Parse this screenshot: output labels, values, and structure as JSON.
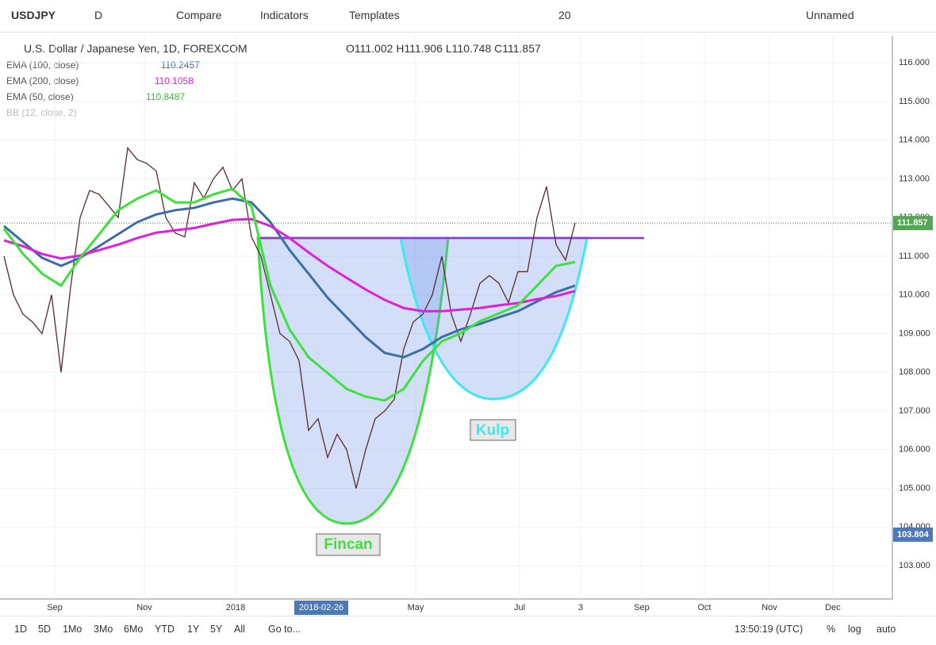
{
  "toolbar": {
    "symbol": "USDJPY",
    "interval": "D",
    "compare": "Compare",
    "indicators": "Indicators",
    "templates": "Templates",
    "font_size": "20",
    "layout_name": "Unnamed"
  },
  "legend": {
    "title": "U.S. Dollar / Japanese Yen, 1D, FOREXCOM",
    "open_label": "O",
    "open": 111.002,
    "high_label": "H",
    "high": 111.906,
    "low_label": "L",
    "low": 110.748,
    "close_label": "C",
    "close": 111.857,
    "bb": "BB (12, close, 2)"
  },
  "chart_data": {
    "type": "line",
    "values": [
      111.0,
      110.0,
      109.5,
      109.3,
      109.0,
      110.0,
      108.0,
      110.2,
      112.0,
      112.7,
      112.6,
      112.3,
      112.0,
      113.8,
      113.5,
      113.4,
      113.2,
      112.0,
      111.6,
      111.5,
      112.9,
      112.5,
      113.0,
      113.3,
      112.7,
      113.0,
      111.5,
      111.0,
      110.0,
      109.0,
      108.8,
      108.3,
      106.5,
      106.8,
      105.8,
      106.4,
      106.0,
      105.0,
      106.0,
      106.8,
      107.0,
      107.3,
      108.6,
      109.3,
      109.5,
      110.0,
      111.0,
      109.5,
      108.8,
      109.5,
      110.3,
      110.5,
      110.3,
      109.8,
      110.6,
      110.6,
      112.0,
      112.8,
      111.3,
      110.9,
      111.86
    ],
    "color": "#5a2a2a",
    "series": [
      {
        "name": "EMA (100, close)",
        "color": "#3a6ea5",
        "last_value": 110.2457,
        "values": [
          111.78,
          111.37,
          110.96,
          110.75,
          110.96,
          111.26,
          111.57,
          111.88,
          112.08,
          112.19,
          112.25,
          112.39,
          112.49,
          112.39,
          111.88,
          111.16,
          110.55,
          109.93,
          109.42,
          108.91,
          108.5,
          108.39,
          108.6,
          108.91,
          109.11,
          109.25,
          109.42,
          109.58,
          109.83,
          110.07,
          110.24
        ]
      },
      {
        "name": "EMA (200, close)",
        "color": "#e020d8",
        "last_value": 110.1058,
        "values": [
          111.41,
          111.26,
          111.06,
          110.94,
          111.02,
          111.16,
          111.3,
          111.47,
          111.61,
          111.67,
          111.73,
          111.84,
          111.94,
          111.96,
          111.78,
          111.47,
          111.1,
          110.75,
          110.44,
          110.14,
          109.87,
          109.66,
          109.58,
          109.58,
          109.62,
          109.66,
          109.73,
          109.79,
          109.89,
          109.97,
          110.1
        ]
      },
      {
        "name": "EMA (50, close)",
        "color": "#3ee03e",
        "last_value": 110.8487,
        "values": [
          111.71,
          111.06,
          110.55,
          110.24,
          110.96,
          111.57,
          112.19,
          112.49,
          112.7,
          112.39,
          112.39,
          112.6,
          112.74,
          112.29,
          110.24,
          109.11,
          108.39,
          107.98,
          107.57,
          107.37,
          107.27,
          107.57,
          108.29,
          108.8,
          109.01,
          109.32,
          109.52,
          109.73,
          110.24,
          110.75,
          110.85
        ]
      }
    ],
    "ylim": [
      102.14,
      116.7
    ],
    "yticks": [
      {
        "value": 103,
        "label": "103.000"
      },
      {
        "value": 104,
        "label": "104.000"
      },
      {
        "value": 105,
        "label": "105.000"
      },
      {
        "value": 106,
        "label": "106.000"
      },
      {
        "value": 107,
        "label": "107.000"
      },
      {
        "value": 108,
        "label": "108.000"
      },
      {
        "value": 109,
        "label": "109.000"
      },
      {
        "value": 110,
        "label": "110.000"
      },
      {
        "value": 111,
        "label": "111.000"
      },
      {
        "value": 112,
        "label": "112.000"
      },
      {
        "value": 113,
        "label": "113.000"
      },
      {
        "value": 114,
        "label": "114.000"
      },
      {
        "value": 115,
        "label": "115.000"
      },
      {
        "value": 116,
        "label": "116.000"
      }
    ],
    "xtick_labels": [
      "Sep",
      "Nov",
      "2018",
      "2018-02-26",
      "May",
      "Jul",
      "3",
      "Sep",
      "Oct",
      "Nov",
      "Dec"
    ],
    "marker_price": 103.804,
    "annotations": [
      "Fincan",
      "Kulp"
    ],
    "grid": true
  },
  "bottom_bar": {
    "ranges": [
      "1D",
      "5D",
      "1Mo",
      "3Mo",
      "6Mo",
      "YTD",
      "1Y",
      "5Y",
      "All"
    ],
    "goto": "Go to...",
    "time": "13:50:19 (UTC)",
    "percent": "%",
    "log": "log",
    "auto": "auto"
  }
}
